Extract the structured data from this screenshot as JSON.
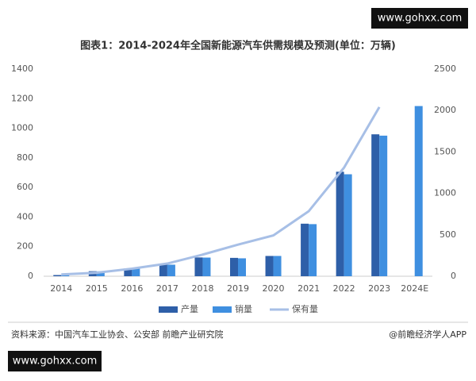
{
  "watermark_top": "www.gohxx.com",
  "watermark_bottom": "www.gohxx.com",
  "source": "资料来源：中国汽车工业协会、公安部 前瞻产业研究院",
  "credit": "@前瞻经济学人APP",
  "chart_data": {
    "type": "bar",
    "title": "图表1：2014-2024年全国新能源汽车供需规模及预测(单位：万辆)",
    "categories": [
      "2014",
      "2015",
      "2016",
      "2017",
      "2018",
      "2019",
      "2020",
      "2021",
      "2022",
      "2023",
      "2024E"
    ],
    "series": [
      {
        "name": "产量",
        "color": "#2e5fa8",
        "values": [
          8,
          34,
          52,
          79,
          127,
          124,
          137,
          355,
          706,
          959,
          null
        ]
      },
      {
        "name": "销量",
        "color": "#3f8fe0",
        "values": [
          7,
          33,
          51,
          78,
          126,
          121,
          137,
          352,
          689,
          950,
          1150
        ]
      },
      {
        "name": "保有量",
        "color": "#a7bfe6",
        "type": "line",
        "axis": "y2",
        "values": [
          22,
          42,
          91,
          153,
          261,
          381,
          492,
          784,
          1310,
          2041,
          null
        ]
      }
    ],
    "ylim": [
      0,
      1400
    ],
    "yticks": [
      0,
      200,
      400,
      600,
      800,
      1000,
      1200,
      1400
    ],
    "y2lim": [
      0,
      2500
    ],
    "y2ticks": [
      0,
      500,
      1000,
      1500,
      2000,
      2500
    ]
  }
}
